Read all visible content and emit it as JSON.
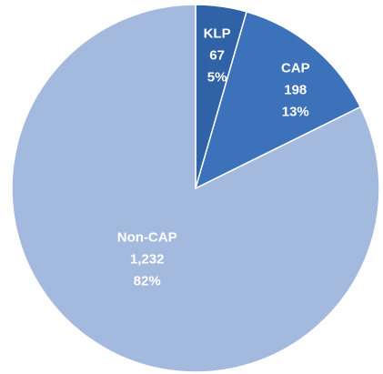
{
  "chart_data": {
    "type": "pie",
    "categories": [
      "KLP",
      "CAP",
      "Non-CAP"
    ],
    "values": [
      67,
      198,
      1232
    ],
    "value_labels": [
      "67",
      "198",
      "1,232"
    ],
    "percent_labels": [
      "5%",
      "13%",
      "82%"
    ],
    "colors": [
      "#2f62a6",
      "#3b72b9",
      "#a4b9de"
    ]
  }
}
